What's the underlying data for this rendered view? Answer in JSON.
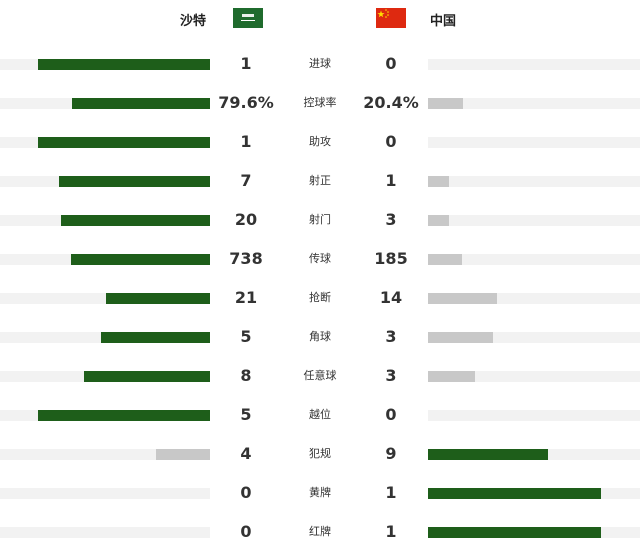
{
  "header": {
    "home_team": "沙特",
    "away_team": "中国",
    "home_flag_icon": "saudi-arabia-flag-icon",
    "away_flag_icon": "china-flag-icon"
  },
  "colors": {
    "leader": "#1e5e1a",
    "trailer": "#c8c8c8",
    "track": "#f2f2f2",
    "saudi_green": "#1f6b2d",
    "china_red": "#de2910",
    "china_star": "#ffde00"
  },
  "stats": [
    {
      "label": "进球",
      "home": "1",
      "away": "0",
      "home_frac": 0.82,
      "away_frac": 0.0
    },
    {
      "label": "控球率",
      "home": "79.6%",
      "away": "20.4%",
      "home_frac": 0.655,
      "away_frac": 0.165
    },
    {
      "label": "助攻",
      "home": "1",
      "away": "0",
      "home_frac": 0.82,
      "away_frac": 0.0
    },
    {
      "label": "射正",
      "home": "7",
      "away": "1",
      "home_frac": 0.72,
      "away_frac": 0.1
    },
    {
      "label": "射门",
      "home": "20",
      "away": "3",
      "home_frac": 0.71,
      "away_frac": 0.1
    },
    {
      "label": "传球",
      "home": "738",
      "away": "185",
      "home_frac": 0.66,
      "away_frac": 0.16
    },
    {
      "label": "抢断",
      "home": "21",
      "away": "14",
      "home_frac": 0.495,
      "away_frac": 0.325
    },
    {
      "label": "角球",
      "home": "5",
      "away": "3",
      "home_frac": 0.52,
      "away_frac": 0.305
    },
    {
      "label": "任意球",
      "home": "8",
      "away": "3",
      "home_frac": 0.6,
      "away_frac": 0.22
    },
    {
      "label": "越位",
      "home": "5",
      "away": "0",
      "home_frac": 0.82,
      "away_frac": 0.0
    },
    {
      "label": "犯规",
      "home": "4",
      "away": "9",
      "home_frac": 0.255,
      "away_frac": 0.565
    },
    {
      "label": "黄牌",
      "home": "0",
      "away": "1",
      "home_frac": 0.0,
      "away_frac": 0.815
    },
    {
      "label": "红牌",
      "home": "0",
      "away": "1",
      "home_frac": 0.0,
      "away_frac": 0.815
    }
  ]
}
